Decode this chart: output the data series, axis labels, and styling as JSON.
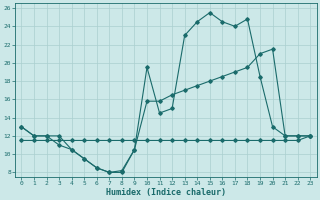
{
  "xlabel": "Humidex (Indice chaleur)",
  "bg_color": "#cce8e8",
  "grid_color": "#aacfcf",
  "line_color": "#1a6b6b",
  "xlim": [
    -0.5,
    23.5
  ],
  "ylim": [
    7.5,
    26.5
  ],
  "xticks": [
    0,
    1,
    2,
    3,
    4,
    5,
    6,
    7,
    8,
    9,
    10,
    11,
    12,
    13,
    14,
    15,
    16,
    17,
    18,
    19,
    20,
    21,
    22,
    23
  ],
  "yticks": [
    8,
    10,
    12,
    14,
    16,
    18,
    20,
    22,
    24,
    26
  ],
  "line1_x": [
    0,
    1,
    2,
    3,
    4,
    5,
    6,
    7,
    8,
    9,
    10,
    11,
    12,
    13,
    14,
    15,
    16,
    17,
    18,
    19,
    20,
    21,
    22,
    23
  ],
  "line1_y": [
    13,
    12,
    12,
    11,
    10.5,
    9.5,
    8.5,
    8.0,
    8.2,
    10.5,
    19.5,
    14.5,
    15.0,
    23.0,
    24.5,
    25.5,
    24.5,
    24.0,
    24.8,
    18.5,
    13.0,
    12.0,
    12.0,
    12.0
  ],
  "line2_x": [
    0,
    1,
    2,
    3,
    4,
    5,
    6,
    7,
    8,
    9,
    10,
    11,
    12,
    13,
    14,
    15,
    16,
    17,
    18,
    19,
    20,
    21,
    22,
    23
  ],
  "line2_y": [
    13,
    12,
    12,
    12,
    10.5,
    9.5,
    8.5,
    8.0,
    8.0,
    10.5,
    15.8,
    15.8,
    16.5,
    17.0,
    17.5,
    18.0,
    18.5,
    19.0,
    19.5,
    21.0,
    21.5,
    12.0,
    12.0,
    12.0
  ],
  "line3_x": [
    0,
    1,
    2,
    3,
    4,
    5,
    6,
    7,
    8,
    9,
    10,
    11,
    12,
    13,
    14,
    15,
    16,
    17,
    18,
    19,
    20,
    21,
    22,
    23
  ],
  "line3_y": [
    11.5,
    11.5,
    11.5,
    11.5,
    11.5,
    11.5,
    11.5,
    11.5,
    11.5,
    11.5,
    11.5,
    11.5,
    11.5,
    11.5,
    11.5,
    11.5,
    11.5,
    11.5,
    11.5,
    11.5,
    11.5,
    11.5,
    11.5,
    12.0
  ]
}
